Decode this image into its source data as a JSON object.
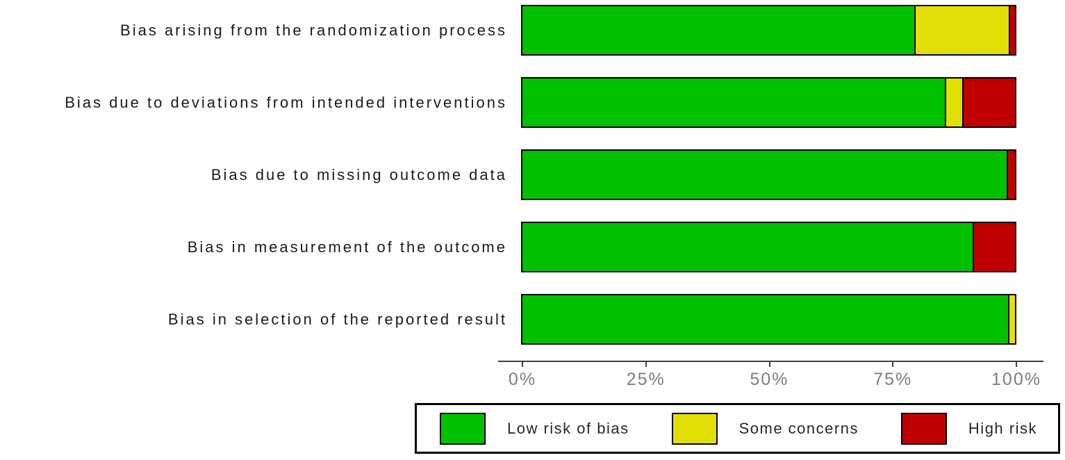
{
  "chart_data": {
    "type": "bar",
    "orientation": "horizontal",
    "stacked": true,
    "title": "",
    "xlabel": "",
    "ylabel": "",
    "xlim": [
      0,
      100
    ],
    "x_ticks": [
      "0%",
      "25%",
      "50%",
      "75%",
      "100%"
    ],
    "grid": false,
    "legend_position": "bottom",
    "categories": [
      "Bias arising from the randomization process",
      "Bias due to deviations from intended interventions",
      "Bias due to missing outcome data",
      "Bias in measurement of the outcome",
      "Bias in selection of the reported result"
    ],
    "series": [
      {
        "name": "Low risk of bias",
        "color": "#02C100",
        "values": [
          79.5,
          85.8,
          98.3,
          91.4,
          98.6
        ]
      },
      {
        "name": "Some concerns",
        "color": "#E2DF07",
        "values": [
          19.2,
          3.5,
          0,
          0,
          1.4
        ]
      },
      {
        "name": "High risk",
        "color": "#C00000",
        "values": [
          1.3,
          10.7,
          1.7,
          8.6,
          0
        ]
      }
    ]
  },
  "colors": {
    "background": "#ffffff",
    "bar_border": "#000000",
    "axis_line": "#3d3d3d",
    "tick_label_text": "#7d7d7d",
    "category_label_text": "#1a1a1a",
    "legend_text": "#262626"
  }
}
